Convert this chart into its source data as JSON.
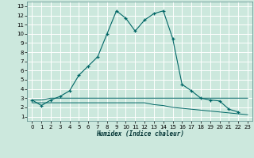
{
  "xlabel": "Humidex (Indice chaleur)",
  "bg_color": "#cce8dd",
  "grid_color": "#ffffff",
  "line_color": "#006666",
  "xlim": [
    -0.5,
    23.5
  ],
  "ylim": [
    0.5,
    13.5
  ],
  "xticks": [
    0,
    1,
    2,
    3,
    4,
    5,
    6,
    7,
    8,
    9,
    10,
    11,
    12,
    13,
    14,
    15,
    16,
    17,
    18,
    19,
    20,
    21,
    22,
    23
  ],
  "yticks": [
    1,
    2,
    3,
    4,
    5,
    6,
    7,
    8,
    9,
    10,
    11,
    12,
    13
  ],
  "line1_x": [
    0,
    1,
    2,
    3,
    4,
    5,
    6,
    7,
    8,
    9,
    10,
    11,
    12,
    13,
    14,
    15,
    16,
    17,
    18,
    19,
    20,
    21,
    22
  ],
  "line1_y": [
    2.8,
    2.2,
    2.8,
    3.2,
    3.8,
    5.5,
    6.5,
    7.5,
    10.0,
    12.5,
    11.7,
    10.3,
    11.5,
    12.2,
    12.5,
    9.5,
    4.5,
    3.8,
    3.0,
    2.8,
    2.7,
    1.8,
    1.5
  ],
  "line2_x": [
    0,
    1,
    2,
    3,
    4,
    5,
    6,
    7,
    8,
    9,
    10,
    11,
    12,
    13,
    14,
    15,
    16,
    17,
    18,
    19,
    20,
    21,
    22,
    23
  ],
  "line2_y": [
    2.8,
    2.8,
    3.0,
    3.0,
    3.0,
    3.0,
    3.0,
    3.0,
    3.0,
    3.0,
    3.0,
    3.0,
    3.0,
    3.0,
    3.0,
    3.0,
    3.0,
    3.0,
    3.0,
    3.0,
    3.0,
    3.0,
    3.0,
    3.0
  ],
  "line3_x": [
    0,
    1,
    2,
    3,
    4,
    5,
    6,
    7,
    8,
    9,
    10,
    11,
    12,
    13,
    14,
    15,
    16,
    17,
    18,
    19,
    20,
    21,
    22,
    23
  ],
  "line3_y": [
    2.5,
    2.5,
    2.5,
    2.5,
    2.5,
    2.5,
    2.5,
    2.5,
    2.5,
    2.5,
    2.5,
    2.5,
    2.5,
    2.3,
    2.2,
    2.0,
    1.9,
    1.8,
    1.7,
    1.6,
    1.5,
    1.4,
    1.3,
    1.2
  ],
  "figsize": [
    3.2,
    2.0
  ],
  "dpi": 100
}
